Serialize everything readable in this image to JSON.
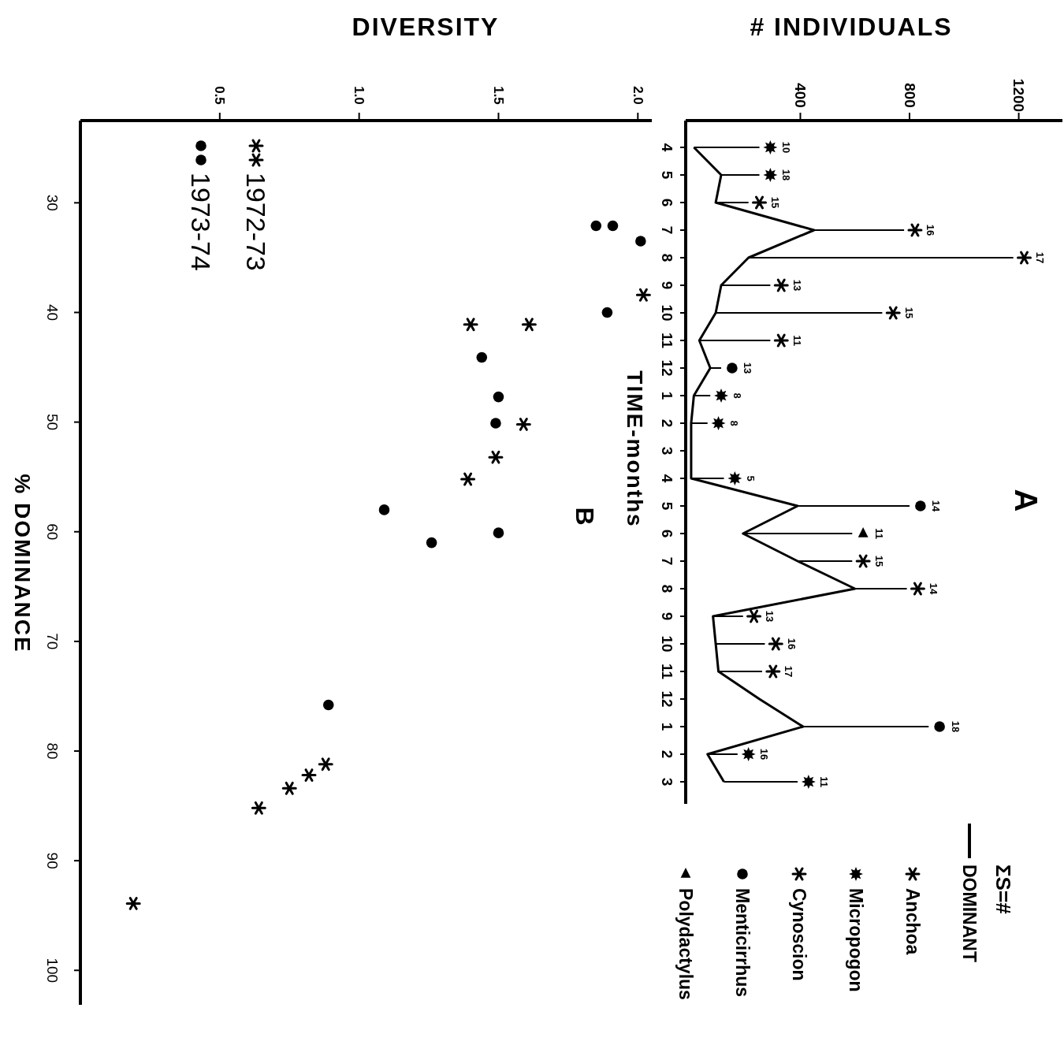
{
  "chart_data": [
    {
      "type": "line",
      "orientation": "horizontal",
      "title": "A",
      "xlabel": "# INDIVIDUALS",
      "ylabel": "TIME-months",
      "legend_title": "ΣS=#",
      "legend": "bottom",
      "categories": [
        "4",
        "5",
        "6",
        "7",
        "8",
        "9",
        "10",
        "11",
        "12",
        "1",
        "2",
        "3",
        "4",
        "5",
        "6",
        "7",
        "8",
        "9",
        "10",
        "11",
        "12",
        "1",
        "2",
        "3"
      ],
      "xlim": [
        -20,
        1360
      ],
      "xticks": [
        400,
        800,
        1200
      ],
      "series": [
        {
          "name": "DOMINANT",
          "color": "#000000",
          "values": [
            10,
            110,
            90,
            450,
            210,
            110,
            90,
            30,
            70,
            10,
            0,
            0,
            0,
            390,
            190,
            390,
            600,
            80,
            90,
            100,
            250,
            410,
            60,
            120
          ]
        },
        {
          "type": "bar",
          "color": "#000000",
          "base": [
            10,
            110,
            90,
            450,
            210,
            110,
            90,
            30,
            70,
            10,
            0,
            null,
            0,
            390,
            190,
            390,
            600,
            80,
            90,
            100,
            null,
            410,
            60,
            120
          ],
          "values": [
            240,
            140,
            120,
            330,
            970,
            180,
            610,
            260,
            40,
            60,
            60,
            null,
            120,
            410,
            400,
            200,
            190,
            110,
            180,
            160,
            null,
            460,
            110,
            270
          ]
        },
        {
          "name": "Anchoa",
          "type": "scatter",
          "marker": "cross",
          "color": "#000000",
          "values": [
            null,
            null,
            250,
            820,
            1220,
            330,
            740,
            330,
            null,
            null,
            null,
            null,
            null,
            null,
            null,
            null,
            null,
            230,
            310,
            300,
            null,
            null,
            null,
            null
          ]
        },
        {
          "name": "Micropogon",
          "type": "scatter",
          "marker": "star",
          "color": "#000000",
          "values": [
            290,
            290,
            null,
            null,
            null,
            null,
            null,
            null,
            null,
            110,
            100,
            null,
            160,
            null,
            null,
            null,
            null,
            null,
            null,
            null,
            null,
            null,
            210,
            430
          ]
        },
        {
          "name": "Cynoscion",
          "type": "scatter",
          "marker": "cross",
          "color": "#000000",
          "values": [
            null,
            null,
            null,
            null,
            null,
            null,
            null,
            null,
            null,
            null,
            null,
            null,
            null,
            null,
            null,
            630,
            830,
            null,
            null,
            null,
            null,
            null,
            null,
            null
          ]
        },
        {
          "name": "Menticirrhus",
          "type": "scatter",
          "marker": "circle",
          "color": "#000000",
          "values": [
            null,
            null,
            null,
            null,
            null,
            null,
            null,
            null,
            150,
            null,
            null,
            null,
            null,
            840,
            null,
            null,
            null,
            null,
            null,
            null,
            null,
            910,
            null,
            null
          ]
        },
        {
          "name": "Polydactylus",
          "type": "scatter",
          "marker": "triangle",
          "color": "#000000",
          "values": [
            null,
            null,
            null,
            null,
            null,
            null,
            null,
            null,
            null,
            null,
            null,
            null,
            null,
            null,
            630,
            null,
            null,
            null,
            null,
            null,
            null,
            null,
            null,
            null
          ]
        }
      ],
      "annotations": [
        "10",
        "18",
        "15",
        "16",
        "17",
        "13",
        "15",
        "11",
        "13",
        "8",
        "8",
        "5",
        "14",
        "11",
        "15",
        "14",
        "13",
        "16",
        "17",
        "18",
        "16",
        "11"
      ]
    },
    {
      "type": "scatter",
      "title": "B",
      "xlabel": "DIVERSITY",
      "ylabel": "% DOMINANCE",
      "legend": "top left",
      "xlim": [
        0,
        2.05
      ],
      "xticks": [
        {
          "value": 0.5,
          "label": "0.5"
        },
        {
          "value": 1,
          "label": "1.0"
        },
        {
          "value": 1.5,
          "label": "1.5"
        },
        {
          "value": 2,
          "label": "2.0"
        }
      ],
      "ylim": [
        103,
        22.5
      ],
      "yticks": [
        30,
        40,
        50,
        60,
        70,
        80,
        90,
        100
      ],
      "series": [
        {
          "name": "1972-73",
          "marker": "cross",
          "color": "#000000",
          "values": [
            38.4,
            41.1,
            41.1,
            50.2,
            53.2,
            55.2,
            81.2,
            82.2,
            83.4,
            85.2,
            93.9
          ],
          "x": [
            2.02,
            1.4,
            1.61,
            1.59,
            1.49,
            1.39,
            0.88,
            0.82,
            0.75,
            0.64,
            0.19
          ]
        },
        {
          "name": "1973-74",
          "marker": "circle",
          "color": "#000000",
          "values": [
            32.1,
            32.1,
            33.5,
            40,
            44.1,
            47.7,
            50.1,
            58,
            60.1,
            61,
            75.8
          ],
          "x": [
            1.91,
            1.85,
            2.01,
            1.89,
            1.44,
            1.5,
            1.49,
            1.09,
            1.5,
            1.26,
            0.89
          ]
        }
      ]
    }
  ]
}
